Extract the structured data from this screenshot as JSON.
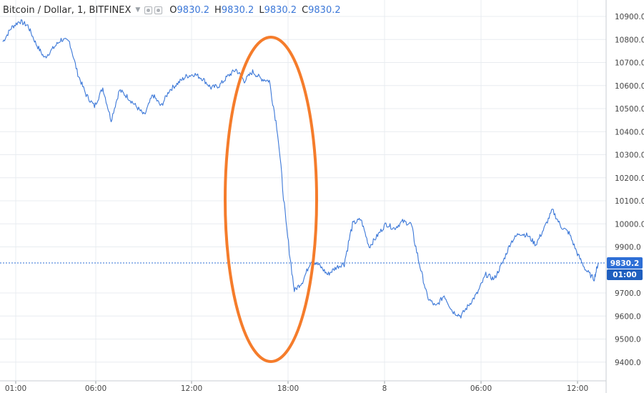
{
  "header": {
    "symbol": "Bitcoin / Dollar, 1, BITFINEX",
    "open_label": "O",
    "open_value": "9830.2",
    "high_label": "H",
    "high_value": "9830.2",
    "low_label": "L",
    "low_value": "9830.2",
    "close_label": "C",
    "close_value": "9830.2"
  },
  "last_price": {
    "value": "9830.2",
    "countdown": "01:00"
  },
  "colors": {
    "line": "#3c78d8",
    "annotation": "#f57c2b",
    "grid": "#e8ecf0",
    "axis_text": "#444444",
    "price_tag": "#2e6fd6"
  },
  "annotation": {
    "shape": "ellipse",
    "note": ""
  },
  "chart_data": {
    "type": "line",
    "title": "Bitcoin / Dollar, 1, BITFINEX",
    "xlabel": "",
    "ylabel": "",
    "x_ticks": [
      "01:00",
      "06:00",
      "12:00",
      "18:00",
      "8",
      "06:00",
      "12:00"
    ],
    "y_ticks": [
      10900,
      10800,
      10700,
      10600,
      10500,
      10400,
      10300,
      10200,
      10100,
      10000,
      9900,
      9700,
      9600,
      9500,
      9400
    ],
    "ylim": [
      9350,
      10950
    ],
    "grid": true,
    "series": [
      {
        "name": "",
        "x_hours": [
          0,
          0.5,
          1,
          1.5,
          2,
          2.5,
          3,
          3.5,
          4,
          4.5,
          5,
          5.5,
          6,
          6.5,
          7,
          7.5,
          8,
          8.5,
          9,
          9.5,
          10,
          10.5,
          11,
          11.5,
          12,
          12.5,
          13,
          13.5,
          14,
          14.5,
          15,
          15.5,
          16,
          16.5,
          17,
          17.5,
          18,
          18.5,
          19,
          19.5,
          20,
          20.5,
          21,
          21.5,
          22,
          22.5,
          23,
          23.5,
          24,
          24.5,
          25,
          25.5,
          26,
          26.5,
          27,
          27.5,
          28,
          28.5,
          29,
          29.5,
          30,
          30.5,
          31,
          31.5,
          32,
          32.5,
          33,
          33.5,
          34,
          34.5,
          35,
          35.5,
          35.75
        ],
        "values": [
          10790,
          10850,
          10880,
          10860,
          10780,
          10720,
          10760,
          10800,
          10790,
          10650,
          10560,
          10510,
          10590,
          10450,
          10580,
          10550,
          10510,
          10470,
          10560,
          10510,
          10580,
          10610,
          10640,
          10650,
          10630,
          10590,
          10600,
          10640,
          10670,
          10620,
          10660,
          10630,
          10620,
          10400,
          10000,
          9710,
          9750,
          9840,
          9820,
          9780,
          9810,
          9830,
          10000,
          10020,
          9900,
          9950,
          10000,
          9980,
          10010,
          10000,
          9830,
          9680,
          9640,
          9690,
          9620,
          9600,
          9650,
          9700,
          9780,
          9760,
          9830,
          9920,
          9960,
          9950,
          9910,
          9980,
          10060,
          9990,
          9960,
          9870,
          9800,
          9760,
          9830
        ]
      }
    ]
  }
}
